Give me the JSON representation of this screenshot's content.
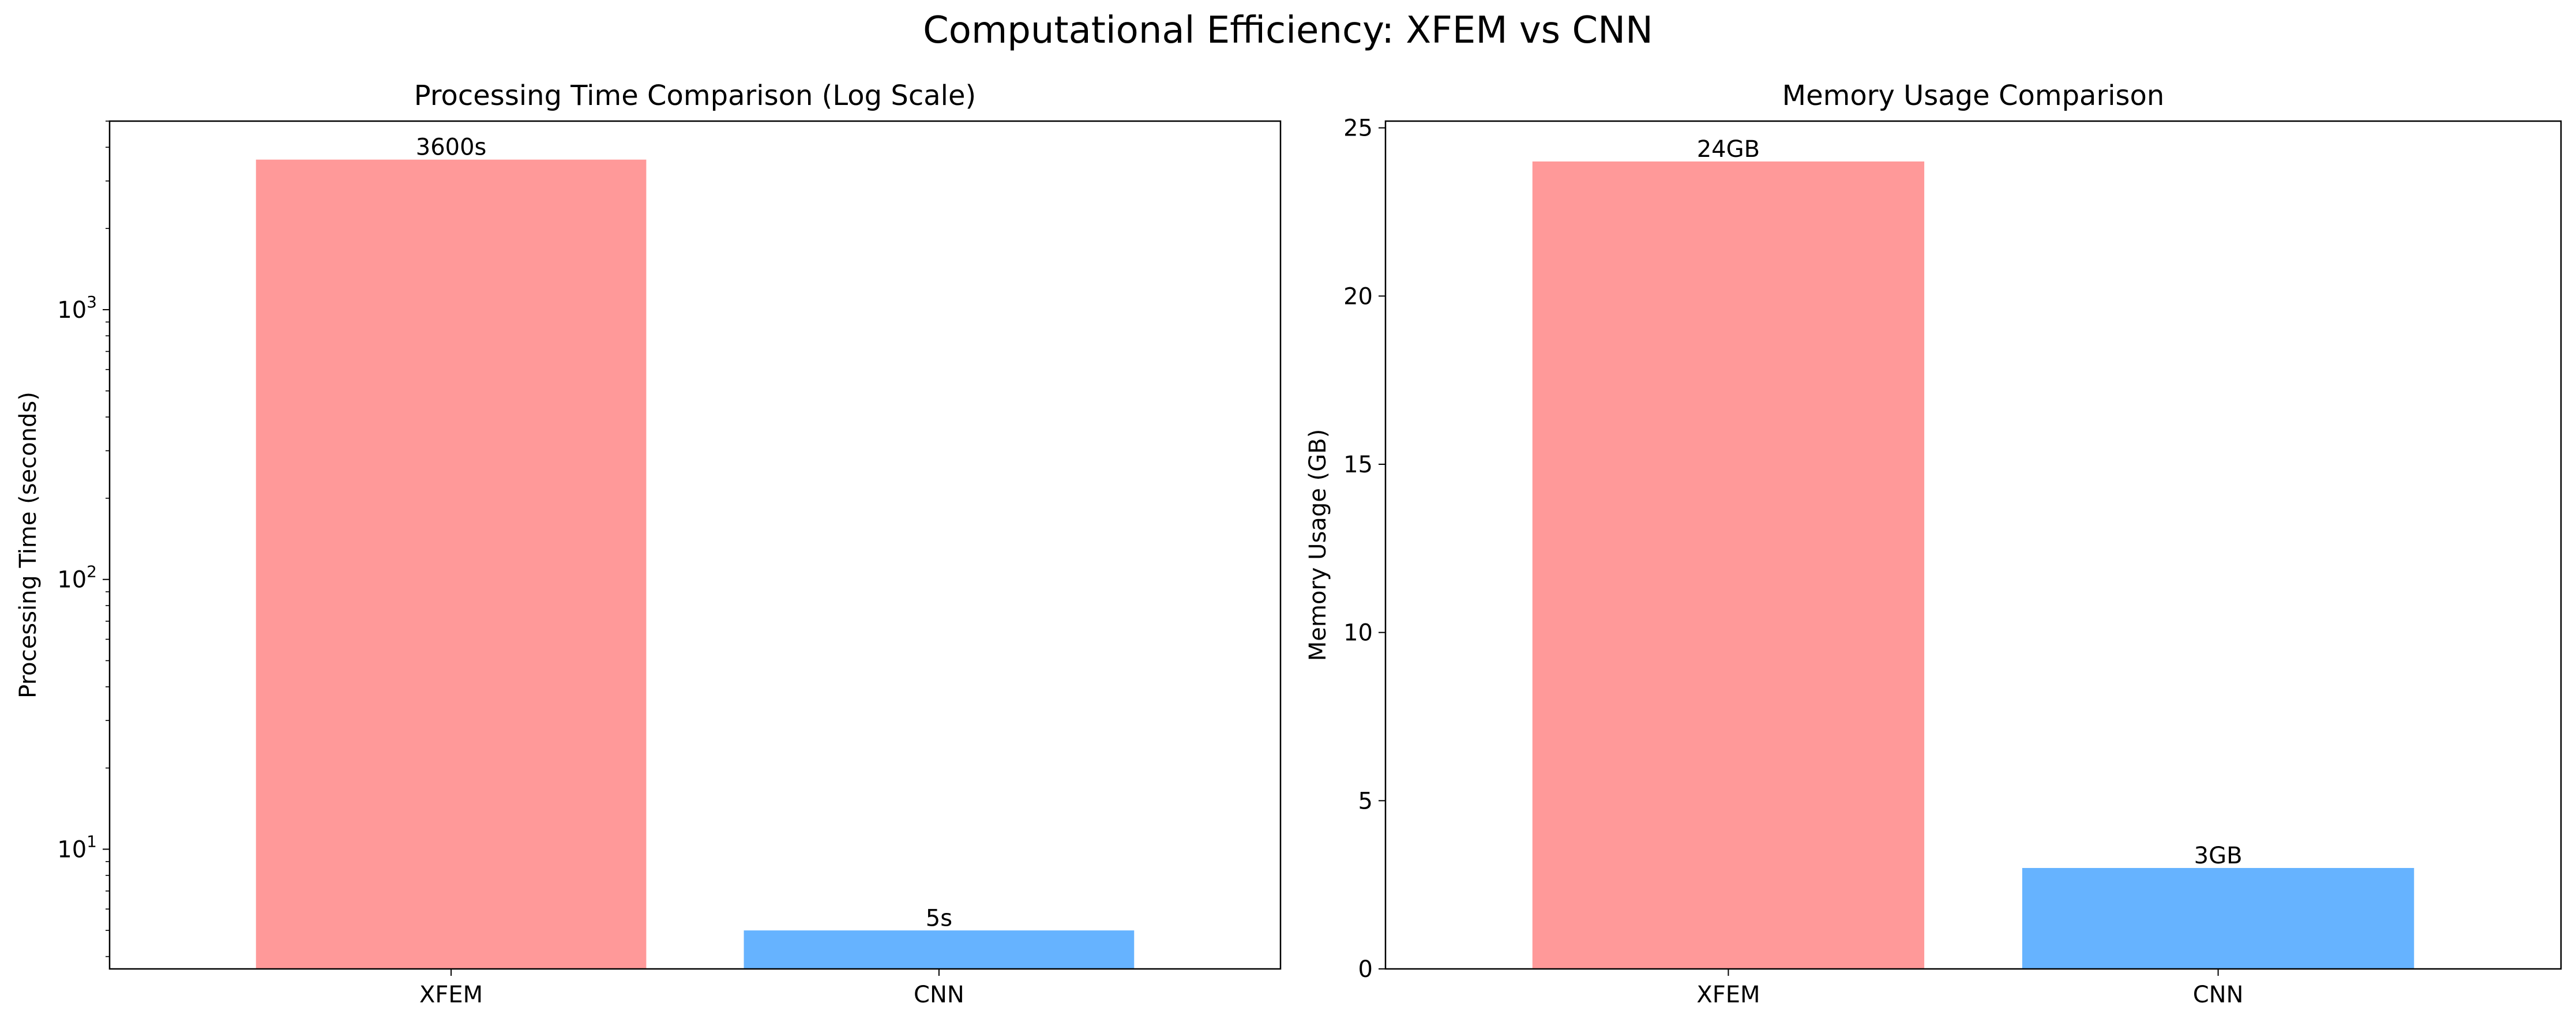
{
  "suptitle": "Computational Efficiency: XFEM vs CNN",
  "chart_data": [
    {
      "type": "bar",
      "title": "Processing Time Comparison (Log Scale)",
      "xlabel": "",
      "ylabel": "Processing Time (seconds)",
      "categories": [
        "XFEM",
        "CNN"
      ],
      "values": [
        3600,
        5
      ],
      "data_labels": [
        "3600s",
        "5s"
      ],
      "colors": [
        "#ff9999",
        "#66b3ff"
      ],
      "yscale": "log",
      "ylim": [
        3.6,
        5000
      ],
      "yticks": [
        {
          "value": 10,
          "base": "10",
          "exp": "1"
        },
        {
          "value": 100,
          "base": "10",
          "exp": "2"
        },
        {
          "value": 1000,
          "base": "10",
          "exp": "3"
        }
      ],
      "grid": false,
      "legend": "none"
    },
    {
      "type": "bar",
      "title": "Memory Usage Comparison",
      "xlabel": "",
      "ylabel": "Memory Usage (GB)",
      "categories": [
        "XFEM",
        "CNN"
      ],
      "values": [
        24,
        3
      ],
      "data_labels": [
        "24GB",
        "3GB"
      ],
      "colors": [
        "#ff9999",
        "#66b3ff"
      ],
      "yscale": "linear",
      "ylim": [
        0,
        25.2
      ],
      "yticks": [
        {
          "value": 0,
          "label": "0"
        },
        {
          "value": 5,
          "label": "5"
        },
        {
          "value": 10,
          "label": "10"
        },
        {
          "value": 15,
          "label": "15"
        },
        {
          "value": 20,
          "label": "20"
        },
        {
          "value": 25,
          "label": "25"
        }
      ],
      "grid": false,
      "legend": "none"
    }
  ]
}
